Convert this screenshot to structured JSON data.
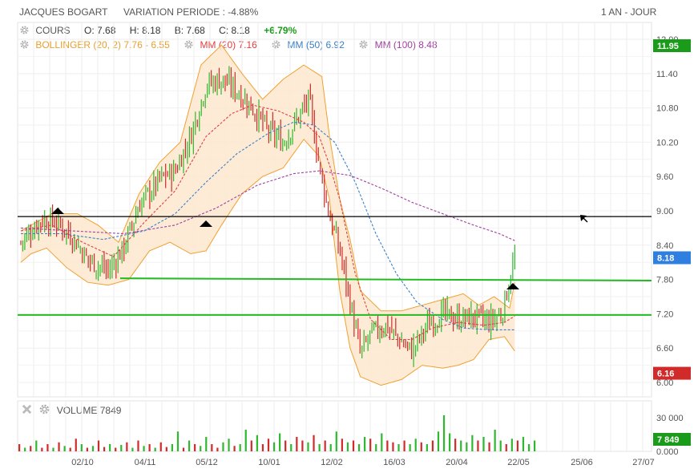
{
  "header": {
    "instrument": "JACQUES BOGART",
    "variation": "VARIATION PERIODE : -4.88%",
    "period": "1 AN - JOUR"
  },
  "legend": {
    "cours_label": "COURS",
    "open": "O: 7.68",
    "high": "H: 8.18",
    "low": "B: 7.68",
    "close": "C: 8.18",
    "change": "+6.79%",
    "bollinger": "BOLLINGER (20, 2)",
    "bollinger_values": "7.76 - 6.55",
    "mm20": "MM (20)",
    "mm20_value": "7.16",
    "mm50": "MM (50)",
    "mm50_value": "6.92",
    "mm100": "MM (100)",
    "mm100_value": "8.48"
  },
  "volume_legend": {
    "label": "VOLUME",
    "value": "7849"
  },
  "colors": {
    "up": "#2fb82f",
    "down": "#d02a2a",
    "bollinger": "#f0a030",
    "bollinger_fill": "#fde7cf",
    "mm20": "#e04040",
    "mm50": "#3a80c8",
    "mm100": "#a040a0",
    "support": "#22bb22",
    "resistance": "#000000"
  },
  "chart_data": {
    "type": "candlestick",
    "x_ticks": [
      "02/10",
      "04/11",
      "05/12",
      "10/01",
      "12/02",
      "16/03",
      "20/04",
      "22/05",
      "25/06",
      "27/07"
    ],
    "y_ticks": [
      "12.00",
      "11.40",
      "10.80",
      "10.20",
      "9.60",
      "9.00",
      "8.40",
      "7.80",
      "7.20",
      "6.60",
      "6.00"
    ],
    "ylim": [
      6.0,
      12.0
    ],
    "volume_ticks": [
      "30 000",
      "0.000"
    ],
    "price_badges": [
      {
        "label": "11.95",
        "value": 11.95,
        "color": "#1a9c1a"
      },
      {
        "label": "8.18",
        "value": 8.18,
        "color": "#2f7fe0"
      },
      {
        "label": "6.16",
        "value": 6.16,
        "color": "#d02a2a"
      }
    ],
    "volume_badge": {
      "label": "7 849",
      "value": 7849,
      "color": "#1a9c1a"
    },
    "horizontal_lines": [
      {
        "kind": "resistance",
        "value": 8.9
      },
      {
        "kind": "support",
        "value": 7.18
      }
    ],
    "trend_line": {
      "from": {
        "x": 0.14,
        "y": 7.82
      },
      "to": {
        "x": 1.0,
        "y": 7.78
      }
    },
    "close_path": [
      [
        0.0,
        8.45
      ],
      [
        0.04,
        8.85
      ],
      [
        0.07,
        8.8
      ],
      [
        0.1,
        8.55
      ],
      [
        0.13,
        8.15
      ],
      [
        0.17,
        7.95
      ],
      [
        0.2,
        8.35
      ],
      [
        0.23,
        9.1
      ],
      [
        0.27,
        9.55
      ],
      [
        0.3,
        9.7
      ],
      [
        0.33,
        10.3
      ],
      [
        0.36,
        11.2
      ],
      [
        0.39,
        11.3
      ],
      [
        0.42,
        11.1
      ],
      [
        0.45,
        10.8
      ],
      [
        0.48,
        10.4
      ],
      [
        0.51,
        10.2
      ],
      [
        0.54,
        10.65
      ],
      [
        0.56,
        10.95
      ],
      [
        0.58,
        9.8
      ],
      [
        0.6,
        8.9
      ],
      [
        0.62,
        8.3
      ],
      [
        0.64,
        7.4
      ],
      [
        0.66,
        6.5
      ],
      [
        0.68,
        6.85
      ],
      [
        0.71,
        7.0
      ],
      [
        0.74,
        6.7
      ],
      [
        0.76,
        6.55
      ],
      [
        0.79,
        7.0
      ],
      [
        0.82,
        7.2
      ],
      [
        0.85,
        7.1
      ],
      [
        0.88,
        7.15
      ],
      [
        0.91,
        7.05
      ],
      [
        0.935,
        7.2
      ],
      [
        0.96,
        8.18
      ]
    ],
    "bollinger_upper": [
      [
        0.0,
        8.65
      ],
      [
        0.06,
        8.95
      ],
      [
        0.11,
        8.95
      ],
      [
        0.15,
        8.75
      ],
      [
        0.19,
        8.45
      ],
      [
        0.23,
        9.3
      ],
      [
        0.27,
        9.85
      ],
      [
        0.31,
        10.2
      ],
      [
        0.35,
        11.55
      ],
      [
        0.39,
        11.9
      ],
      [
        0.43,
        11.4
      ],
      [
        0.47,
        10.95
      ],
      [
        0.51,
        11.3
      ],
      [
        0.55,
        11.55
      ],
      [
        0.585,
        11.35
      ],
      [
        0.6,
        10.3
      ],
      [
        0.62,
        9.2
      ],
      [
        0.64,
        8.5
      ],
      [
        0.66,
        7.6
      ],
      [
        0.7,
        7.25
      ],
      [
        0.74,
        7.25
      ],
      [
        0.78,
        7.35
      ],
      [
        0.82,
        7.45
      ],
      [
        0.86,
        7.55
      ],
      [
        0.89,
        7.35
      ],
      [
        0.92,
        7.5
      ],
      [
        0.95,
        7.3
      ],
      [
        0.96,
        7.75
      ]
    ],
    "bollinger_lower": [
      [
        0.96,
        6.55
      ],
      [
        0.94,
        6.8
      ],
      [
        0.91,
        6.75
      ],
      [
        0.88,
        6.4
      ],
      [
        0.85,
        6.3
      ],
      [
        0.82,
        6.25
      ],
      [
        0.78,
        6.3
      ],
      [
        0.74,
        6.05
      ],
      [
        0.7,
        5.95
      ],
      [
        0.66,
        6.1
      ],
      [
        0.64,
        6.6
      ],
      [
        0.62,
        7.6
      ],
      [
        0.6,
        9.2
      ],
      [
        0.58,
        9.95
      ],
      [
        0.55,
        10.25
      ],
      [
        0.51,
        9.75
      ],
      [
        0.47,
        9.6
      ],
      [
        0.43,
        9.3
      ],
      [
        0.39,
        8.75
      ],
      [
        0.36,
        8.3
      ],
      [
        0.33,
        8.25
      ],
      [
        0.29,
        8.45
      ],
      [
        0.25,
        8.3
      ],
      [
        0.21,
        7.8
      ],
      [
        0.17,
        7.7
      ],
      [
        0.13,
        7.75
      ],
      [
        0.09,
        8.0
      ],
      [
        0.05,
        8.35
      ],
      [
        0.02,
        8.25
      ],
      [
        0.0,
        8.1
      ]
    ],
    "mm20": [
      [
        0.0,
        8.65
      ],
      [
        0.06,
        8.75
      ],
      [
        0.12,
        8.45
      ],
      [
        0.18,
        8.2
      ],
      [
        0.24,
        8.8
      ],
      [
        0.3,
        9.35
      ],
      [
        0.36,
        10.3
      ],
      [
        0.41,
        10.7
      ],
      [
        0.45,
        10.85
      ],
      [
        0.5,
        10.75
      ],
      [
        0.55,
        10.55
      ],
      [
        0.58,
        10.3
      ],
      [
        0.6,
        9.8
      ],
      [
        0.62,
        9.2
      ],
      [
        0.65,
        7.9
      ],
      [
        0.68,
        7.1
      ],
      [
        0.72,
        6.75
      ],
      [
        0.76,
        6.75
      ],
      [
        0.8,
        6.95
      ],
      [
        0.85,
        7.05
      ],
      [
        0.9,
        7.0
      ],
      [
        0.94,
        7.05
      ],
      [
        0.96,
        7.16
      ]
    ],
    "mm50": [
      [
        0.0,
        8.6
      ],
      [
        0.08,
        8.6
      ],
      [
        0.16,
        8.5
      ],
      [
        0.24,
        8.65
      ],
      [
        0.3,
        8.95
      ],
      [
        0.36,
        9.5
      ],
      [
        0.42,
        10.0
      ],
      [
        0.48,
        10.35
      ],
      [
        0.53,
        10.55
      ],
      [
        0.57,
        10.5
      ],
      [
        0.61,
        10.2
      ],
      [
        0.65,
        9.5
      ],
      [
        0.69,
        8.6
      ],
      [
        0.73,
        7.9
      ],
      [
        0.77,
        7.4
      ],
      [
        0.82,
        7.1
      ],
      [
        0.86,
        6.95
      ],
      [
        0.91,
        6.92
      ],
      [
        0.96,
        6.92
      ]
    ],
    "mm100": [
      [
        0.0,
        8.7
      ],
      [
        0.1,
        8.65
      ],
      [
        0.2,
        8.6
      ],
      [
        0.3,
        8.75
      ],
      [
        0.38,
        9.05
      ],
      [
        0.46,
        9.45
      ],
      [
        0.53,
        9.65
      ],
      [
        0.58,
        9.7
      ],
      [
        0.64,
        9.62
      ],
      [
        0.7,
        9.4
      ],
      [
        0.76,
        9.15
      ],
      [
        0.82,
        8.95
      ],
      [
        0.88,
        8.75
      ],
      [
        0.93,
        8.6
      ],
      [
        0.96,
        8.48
      ]
    ],
    "volume": [
      0.2,
      0.1,
      0.15,
      0.3,
      0.1,
      0.2,
      0.1,
      0.25,
      0.15,
      0.1,
      0.35,
      0.2,
      0.1,
      0.15,
      0.3,
      0.12,
      0.2,
      0.1,
      0.18,
      0.25,
      0.1,
      0.3,
      0.15,
      0.2,
      0.1,
      0.25,
      0.12,
      0.2,
      0.55,
      0.1,
      0.3,
      0.2,
      0.15,
      0.4,
      0.2,
      0.1,
      0.25,
      0.35,
      0.15,
      0.2,
      0.6,
      0.3,
      0.45,
      0.2,
      0.35,
      0.25,
      0.5,
      0.3,
      0.2,
      0.4,
      0.3,
      0.25,
      0.45,
      0.2,
      0.3,
      0.2,
      0.55,
      0.35,
      0.25,
      0.3,
      0.2,
      0.4,
      0.35,
      0.2,
      0.5,
      0.3,
      0.25,
      0.2,
      0.3,
      0.2,
      0.35,
      0.25,
      0.2,
      0.3,
      0.55,
      1.0,
      0.5,
      0.35,
      0.3,
      0.25,
      0.45,
      0.3,
      0.4,
      0.25,
      0.6,
      0.3,
      0.2,
      0.35,
      0.3,
      0.4,
      0.2,
      0.3
    ],
    "volume_up": [
      0,
      1,
      0,
      1,
      0,
      0,
      1,
      0,
      1,
      0,
      0,
      1,
      0,
      1,
      0,
      0,
      1,
      0,
      1,
      0,
      1,
      0,
      1,
      0,
      1,
      0,
      0,
      1,
      1,
      0,
      1,
      0,
      1,
      1,
      0,
      0,
      1,
      1,
      0,
      1,
      1,
      0,
      1,
      0,
      0,
      1,
      1,
      0,
      1,
      0,
      0,
      1,
      0,
      1,
      0,
      1,
      1,
      0,
      1,
      0,
      1,
      1,
      0,
      1,
      1,
      0,
      0,
      1,
      0,
      1,
      1,
      0,
      1,
      0,
      1,
      1,
      1,
      0,
      1,
      1,
      1,
      0,
      1,
      0,
      1,
      1,
      0,
      1,
      0,
      1,
      1,
      1
    ]
  }
}
